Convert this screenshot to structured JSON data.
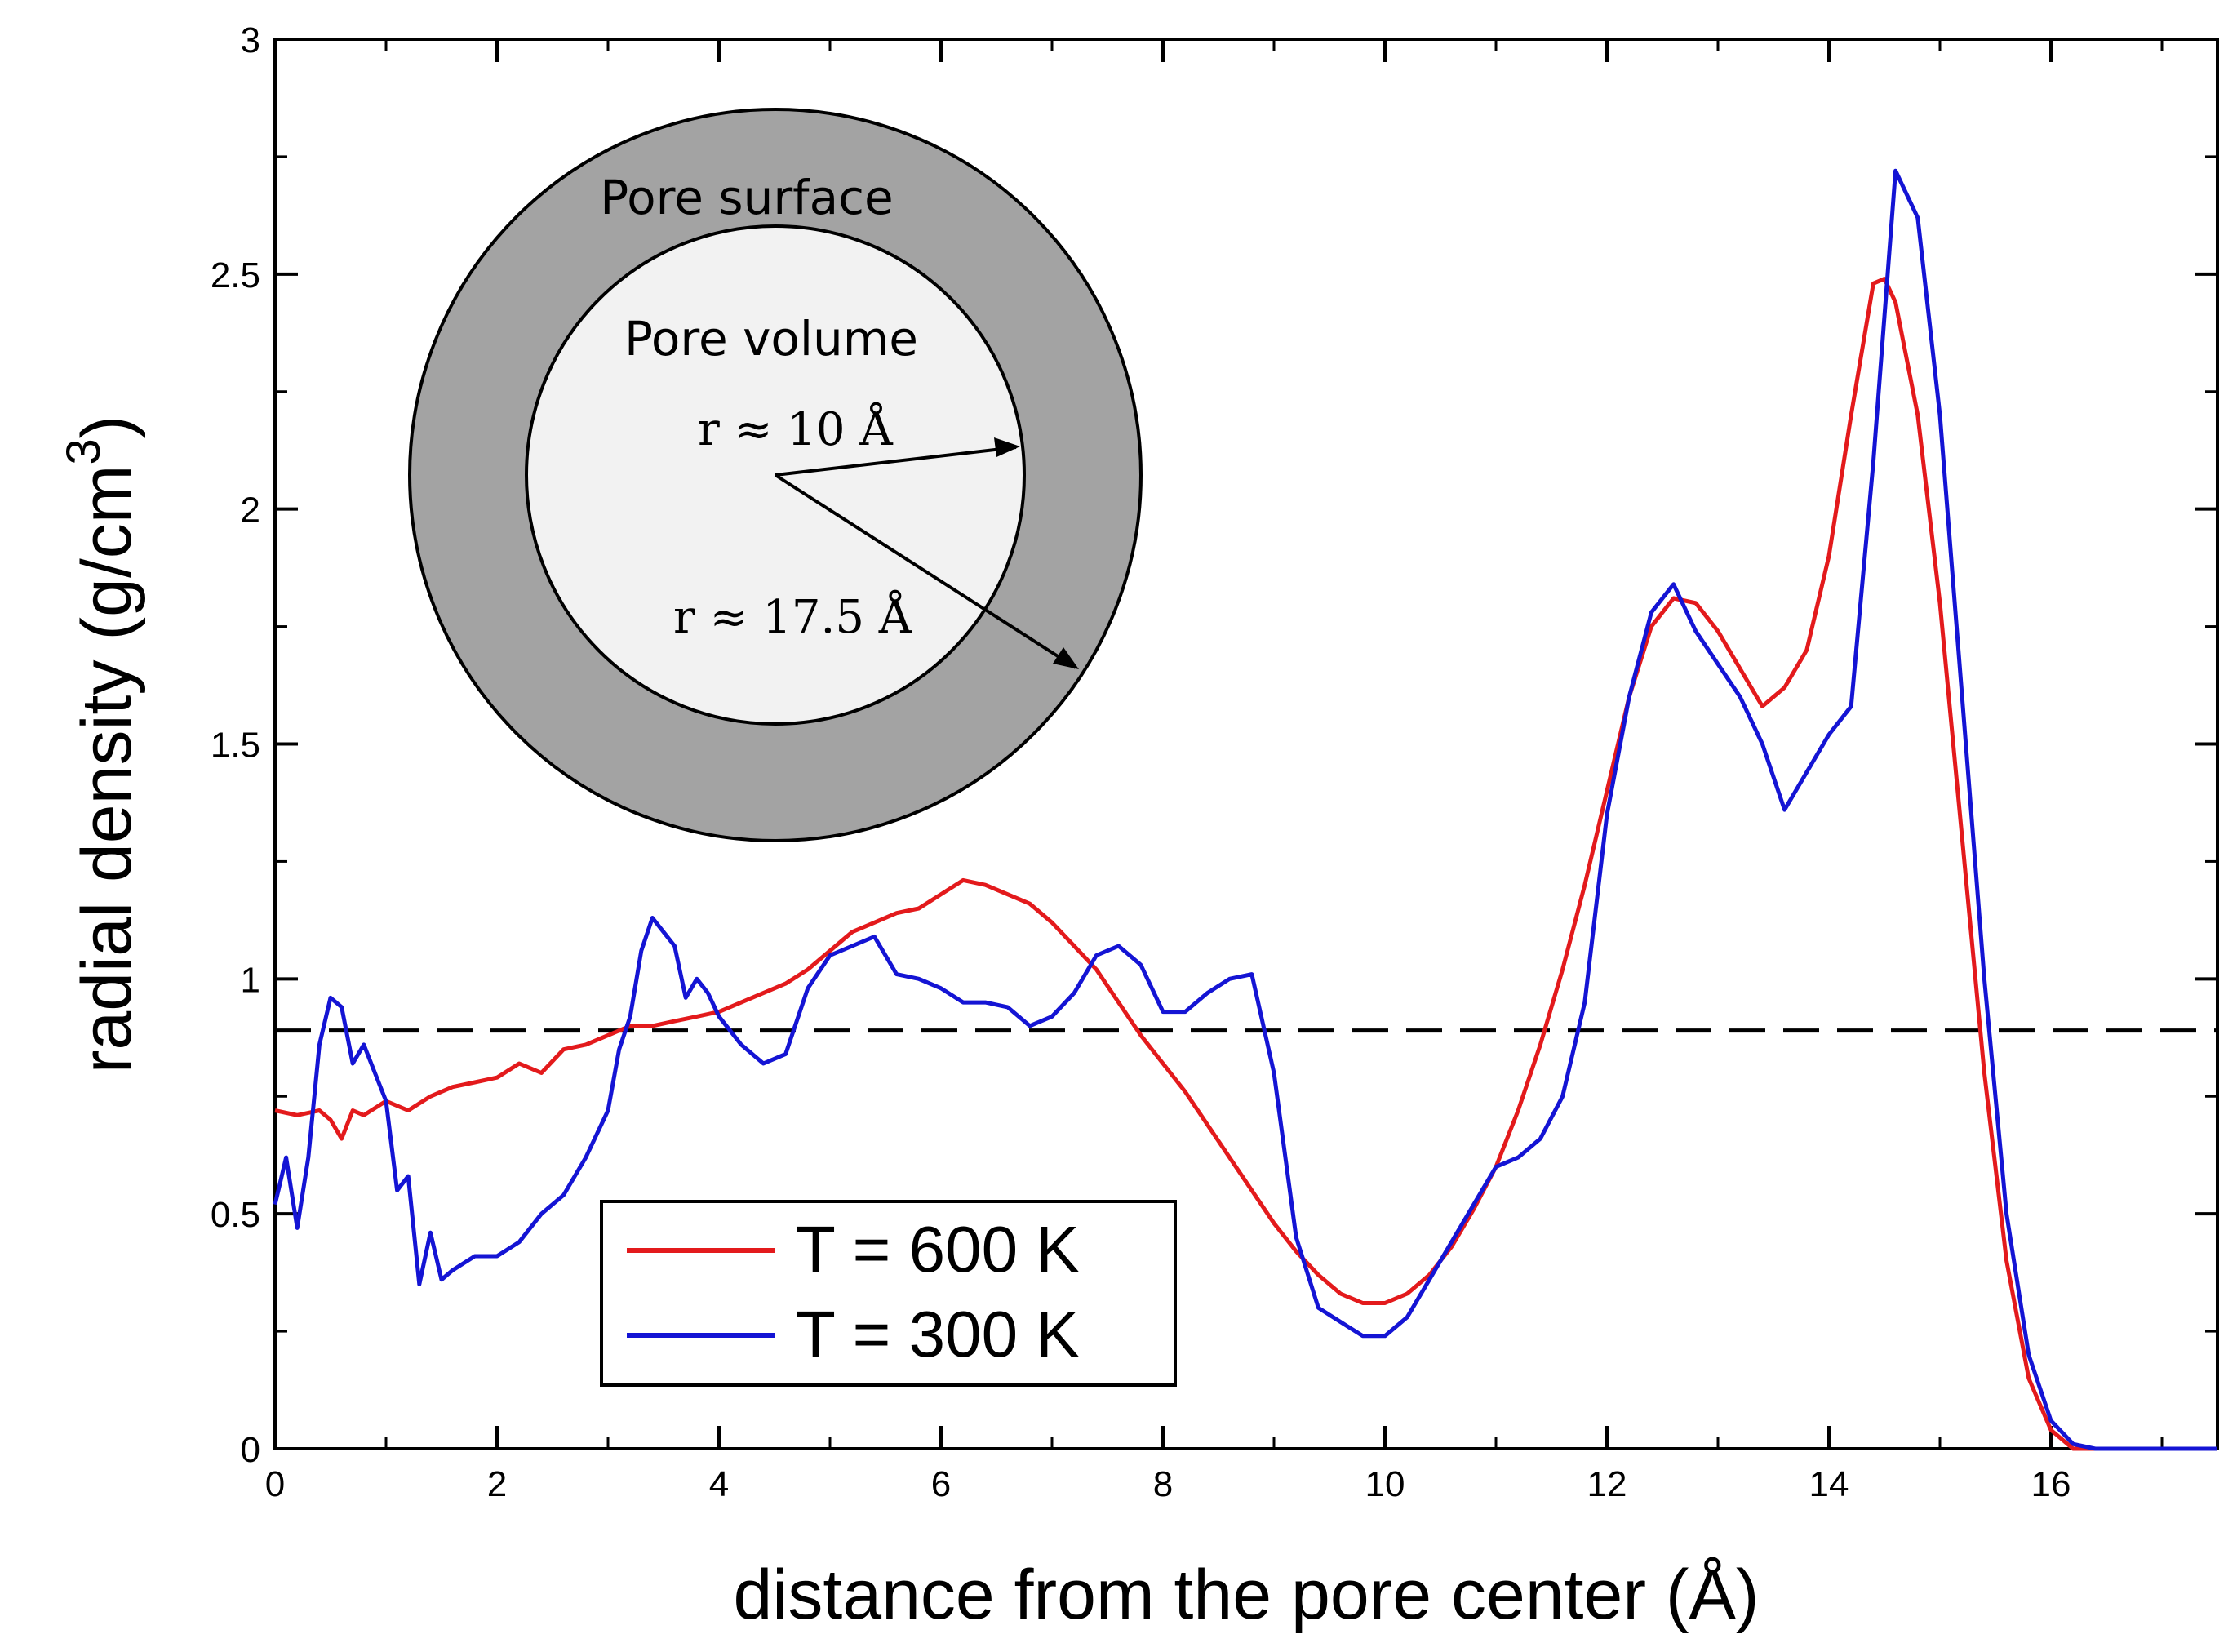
{
  "chart_data": {
    "type": "line",
    "xlabel": "distance from the pore center (Å)",
    "ylabel": "radial density (g/cm",
    "ylabel_superscript": "3",
    "ylabel_close": ")",
    "xlim": [
      0,
      17.5
    ],
    "ylim": [
      0,
      3
    ],
    "xticks": [
      0,
      2,
      4,
      6,
      8,
      10,
      12,
      14,
      16
    ],
    "xtick_labels": [
      "0",
      "2",
      "4",
      "6",
      "8",
      "10",
      "12",
      "14",
      "16"
    ],
    "yticks": [
      0,
      0.5,
      1,
      1.5,
      2,
      2.5,
      3
    ],
    "ytick_labels": [
      "0",
      "0.5",
      "1",
      "1.5",
      "2",
      "2.5",
      "3"
    ],
    "reference_line": {
      "y": 0.89,
      "style": "dashed",
      "color": "#000000"
    },
    "legend": {
      "placement": "bottom-left",
      "entries": [
        "T = 600 K",
        "T = 300 K"
      ]
    },
    "series": [
      {
        "name": "T = 600 K",
        "color": "#e31a1c",
        "points": [
          [
            0,
            0.72
          ],
          [
            0.2,
            0.71
          ],
          [
            0.4,
            0.72
          ],
          [
            0.5,
            0.7
          ],
          [
            0.6,
            0.66
          ],
          [
            0.7,
            0.72
          ],
          [
            0.8,
            0.71
          ],
          [
            1.0,
            0.74
          ],
          [
            1.2,
            0.72
          ],
          [
            1.4,
            0.75
          ],
          [
            1.6,
            0.77
          ],
          [
            1.8,
            0.78
          ],
          [
            2.0,
            0.79
          ],
          [
            2.2,
            0.82
          ],
          [
            2.4,
            0.8
          ],
          [
            2.6,
            0.85
          ],
          [
            2.8,
            0.86
          ],
          [
            3.0,
            0.88
          ],
          [
            3.2,
            0.9
          ],
          [
            3.4,
            0.9
          ],
          [
            3.6,
            0.91
          ],
          [
            3.8,
            0.92
          ],
          [
            4.0,
            0.93
          ],
          [
            4.2,
            0.95
          ],
          [
            4.4,
            0.97
          ],
          [
            4.6,
            0.99
          ],
          [
            4.8,
            1.02
          ],
          [
            5.0,
            1.06
          ],
          [
            5.2,
            1.1
          ],
          [
            5.4,
            1.12
          ],
          [
            5.6,
            1.14
          ],
          [
            5.8,
            1.15
          ],
          [
            6.0,
            1.18
          ],
          [
            6.2,
            1.21
          ],
          [
            6.4,
            1.2
          ],
          [
            6.6,
            1.18
          ],
          [
            6.8,
            1.16
          ],
          [
            7.0,
            1.12
          ],
          [
            7.2,
            1.07
          ],
          [
            7.4,
            1.02
          ],
          [
            7.6,
            0.95
          ],
          [
            7.8,
            0.88
          ],
          [
            8.0,
            0.82
          ],
          [
            8.2,
            0.76
          ],
          [
            8.4,
            0.69
          ],
          [
            8.6,
            0.62
          ],
          [
            8.8,
            0.55
          ],
          [
            9.0,
            0.48
          ],
          [
            9.2,
            0.42
          ],
          [
            9.4,
            0.37
          ],
          [
            9.6,
            0.33
          ],
          [
            9.8,
            0.31
          ],
          [
            10.0,
            0.31
          ],
          [
            10.2,
            0.33
          ],
          [
            10.4,
            0.37
          ],
          [
            10.6,
            0.43
          ],
          [
            10.8,
            0.51
          ],
          [
            11.0,
            0.6
          ],
          [
            11.2,
            0.72
          ],
          [
            11.4,
            0.86
          ],
          [
            11.6,
            1.02
          ],
          [
            11.8,
            1.2
          ],
          [
            12.0,
            1.4
          ],
          [
            12.2,
            1.6
          ],
          [
            12.4,
            1.75
          ],
          [
            12.6,
            1.81
          ],
          [
            12.8,
            1.8
          ],
          [
            13.0,
            1.74
          ],
          [
            13.2,
            1.66
          ],
          [
            13.4,
            1.58
          ],
          [
            13.6,
            1.62
          ],
          [
            13.8,
            1.7
          ],
          [
            14.0,
            1.9
          ],
          [
            14.2,
            2.2
          ],
          [
            14.4,
            2.48
          ],
          [
            14.5,
            2.49
          ],
          [
            14.6,
            2.44
          ],
          [
            14.8,
            2.2
          ],
          [
            15.0,
            1.8
          ],
          [
            15.2,
            1.3
          ],
          [
            15.4,
            0.8
          ],
          [
            15.6,
            0.4
          ],
          [
            15.8,
            0.15
          ],
          [
            16.0,
            0.04
          ],
          [
            16.2,
            0.0
          ],
          [
            17.5,
            0.0
          ]
        ]
      },
      {
        "name": "T = 300 K",
        "color": "#1414d4",
        "points": [
          [
            0,
            0.52
          ],
          [
            0.1,
            0.62
          ],
          [
            0.2,
            0.47
          ],
          [
            0.3,
            0.62
          ],
          [
            0.4,
            0.86
          ],
          [
            0.5,
            0.96
          ],
          [
            0.6,
            0.94
          ],
          [
            0.7,
            0.82
          ],
          [
            0.8,
            0.86
          ],
          [
            0.9,
            0.8
          ],
          [
            1.0,
            0.74
          ],
          [
            1.1,
            0.55
          ],
          [
            1.2,
            0.58
          ],
          [
            1.3,
            0.35
          ],
          [
            1.4,
            0.46
          ],
          [
            1.5,
            0.36
          ],
          [
            1.6,
            0.38
          ],
          [
            1.8,
            0.41
          ],
          [
            2.0,
            0.41
          ],
          [
            2.2,
            0.44
          ],
          [
            2.4,
            0.5
          ],
          [
            2.6,
            0.54
          ],
          [
            2.8,
            0.62
          ],
          [
            3.0,
            0.72
          ],
          [
            3.1,
            0.85
          ],
          [
            3.2,
            0.92
          ],
          [
            3.3,
            1.06
          ],
          [
            3.4,
            1.13
          ],
          [
            3.5,
            1.1
          ],
          [
            3.6,
            1.07
          ],
          [
            3.7,
            0.96
          ],
          [
            3.8,
            1.0
          ],
          [
            3.9,
            0.97
          ],
          [
            4.0,
            0.92
          ],
          [
            4.2,
            0.86
          ],
          [
            4.4,
            0.82
          ],
          [
            4.6,
            0.84
          ],
          [
            4.8,
            0.98
          ],
          [
            5.0,
            1.05
          ],
          [
            5.2,
            1.07
          ],
          [
            5.4,
            1.09
          ],
          [
            5.6,
            1.01
          ],
          [
            5.8,
            1.0
          ],
          [
            6.0,
            0.98
          ],
          [
            6.2,
            0.95
          ],
          [
            6.4,
            0.95
          ],
          [
            6.6,
            0.94
          ],
          [
            6.8,
            0.9
          ],
          [
            7.0,
            0.92
          ],
          [
            7.2,
            0.97
          ],
          [
            7.4,
            1.05
          ],
          [
            7.6,
            1.07
          ],
          [
            7.8,
            1.03
          ],
          [
            8.0,
            0.93
          ],
          [
            8.2,
            0.93
          ],
          [
            8.4,
            0.97
          ],
          [
            8.6,
            1.0
          ],
          [
            8.8,
            1.01
          ],
          [
            9.0,
            0.8
          ],
          [
            9.2,
            0.45
          ],
          [
            9.4,
            0.3
          ],
          [
            9.6,
            0.27
          ],
          [
            9.8,
            0.24
          ],
          [
            10.0,
            0.24
          ],
          [
            10.2,
            0.28
          ],
          [
            10.4,
            0.36
          ],
          [
            10.6,
            0.44
          ],
          [
            10.8,
            0.52
          ],
          [
            11.0,
            0.6
          ],
          [
            11.2,
            0.62
          ],
          [
            11.4,
            0.66
          ],
          [
            11.6,
            0.75
          ],
          [
            11.8,
            0.95
          ],
          [
            12.0,
            1.35
          ],
          [
            12.2,
            1.6
          ],
          [
            12.4,
            1.78
          ],
          [
            12.6,
            1.84
          ],
          [
            12.8,
            1.74
          ],
          [
            13.0,
            1.67
          ],
          [
            13.2,
            1.6
          ],
          [
            13.4,
            1.5
          ],
          [
            13.6,
            1.36
          ],
          [
            13.8,
            1.44
          ],
          [
            14.0,
            1.52
          ],
          [
            14.2,
            1.58
          ],
          [
            14.4,
            2.1
          ],
          [
            14.6,
            2.72
          ],
          [
            14.8,
            2.62
          ],
          [
            15.0,
            2.2
          ],
          [
            15.2,
            1.6
          ],
          [
            15.4,
            1.0
          ],
          [
            15.6,
            0.5
          ],
          [
            15.8,
            0.2
          ],
          [
            16.0,
            0.06
          ],
          [
            16.2,
            0.01
          ],
          [
            16.4,
            0.0
          ],
          [
            17.5,
            0.0
          ]
        ]
      }
    ],
    "inset": {
      "outer_label": "Pore surface",
      "inner_label": "Pore volume",
      "radius_inner": "r ≈ 10 Å",
      "radius_outer": "r ≈ 17.5 Å",
      "outer_fill": "#a3a3a3",
      "inner_fill": "#f2f2f2"
    }
  }
}
